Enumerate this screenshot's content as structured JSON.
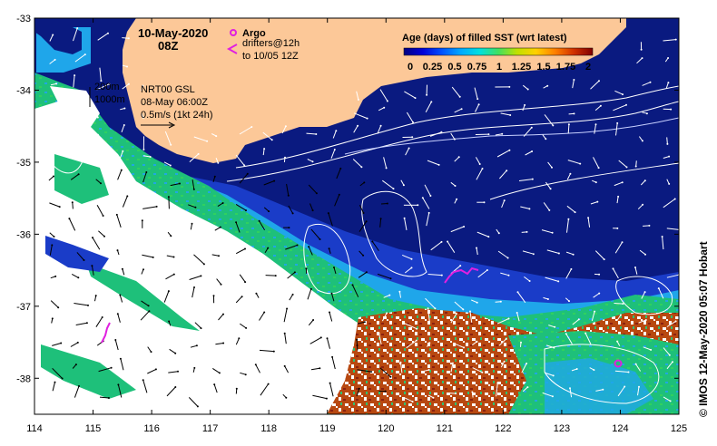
{
  "header": {
    "date": "10-May-2020",
    "time": "08Z"
  },
  "legend_argo": {
    "title": "Argo",
    "drifters_line1": "drifters@12h",
    "drifters_line2": "to 10/05 12Z",
    "argo_color": "#e020e0",
    "drifter_color": "#e020e0"
  },
  "annotations": {
    "depth_200": "200m",
    "depth_1000": "1000m",
    "product": "NRT00 GSL",
    "product_date": "08-May 06:00Z",
    "current_scale": "0.5m/s (1kt 24h)"
  },
  "colorbar": {
    "title": "Age (days) of filled SST (wrt latest)",
    "tick_labels": [
      "0",
      "0.25",
      "0.5",
      "0.75",
      "1",
      "1.25",
      "1.5",
      "1.75",
      "2"
    ],
    "range": [
      0,
      2
    ],
    "colors": [
      "#000080",
      "#0000d8",
      "#0050ff",
      "#00a8ff",
      "#00e0e0",
      "#40e060",
      "#c0e000",
      "#ffd000",
      "#ff8000",
      "#d03000",
      "#800000"
    ]
  },
  "axes": {
    "lon_ticks": [
      "114",
      "115",
      "116",
      "117",
      "118",
      "119",
      "120",
      "121",
      "122",
      "123",
      "124",
      "125"
    ],
    "lat_ticks": [
      "-33",
      "-34",
      "-35",
      "-36",
      "-37",
      "-38"
    ],
    "lon_range": [
      114,
      125
    ],
    "lat_range": [
      -38.5,
      -33
    ]
  },
  "credit": "© IMOS 12-May-2020 05:07 Hobart",
  "region_colors": {
    "land": "#fcc898",
    "deep_ocean": "#0a1a80",
    "mid_blue": "#1a3cc8",
    "light_blue": "#1fa6ea",
    "green": "#1ec07a",
    "brown": "#b84810",
    "no_data": "#ffffff"
  }
}
